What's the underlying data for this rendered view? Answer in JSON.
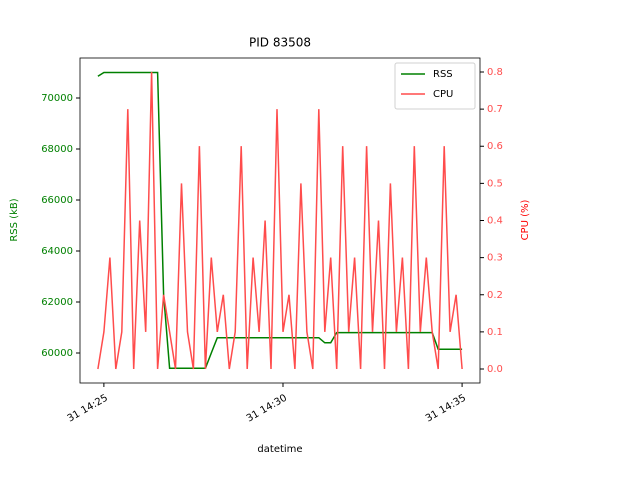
{
  "chart_data": {
    "type": "line",
    "title": "PID 83508",
    "x_label": "datetime",
    "y_label": "RSS (kB)",
    "y2_label": "CPU (%)",
    "x": [
      "14:24:50",
      "14:25:00",
      "14:25:10",
      "14:25:20",
      "14:25:30",
      "14:25:40",
      "14:25:50",
      "14:26:00",
      "14:26:10",
      "14:26:20",
      "14:26:30",
      "14:26:40",
      "14:26:50",
      "14:27:00",
      "14:27:10",
      "14:27:20",
      "14:27:30",
      "14:27:40",
      "14:27:50",
      "14:28:00",
      "14:28:10",
      "14:28:20",
      "14:28:30",
      "14:28:40",
      "14:28:50",
      "14:29:00",
      "14:29:10",
      "14:29:20",
      "14:29:30",
      "14:29:40",
      "14:29:50",
      "14:30:00",
      "14:30:10",
      "14:30:20",
      "14:30:30",
      "14:30:40",
      "14:30:50",
      "14:31:00",
      "14:31:10",
      "14:31:20",
      "14:31:30",
      "14:31:40",
      "14:31:50",
      "14:32:00",
      "14:32:10",
      "14:32:20",
      "14:32:30",
      "14:32:40",
      "14:32:50",
      "14:33:00",
      "14:33:10",
      "14:33:20",
      "14:33:30",
      "14:33:40",
      "14:33:50",
      "14:34:00",
      "14:34:10",
      "14:34:20",
      "14:34:30",
      "14:34:40",
      "14:34:50",
      "14:35:00"
    ],
    "series": [
      {
        "name": "RSS",
        "color": "#008000",
        "values": [
          70850,
          71000,
          71000,
          71000,
          71000,
          71000,
          71000,
          71000,
          71000,
          71000,
          71000,
          62300,
          59400,
          59400,
          59400,
          59400,
          59400,
          59400,
          59400,
          60000,
          60600,
          60600,
          60600,
          60600,
          60600,
          60600,
          60600,
          60600,
          60600,
          60600,
          60600,
          60600,
          60600,
          60600,
          60600,
          60600,
          60600,
          60600,
          60400,
          60400,
          60800,
          60800,
          60800,
          60800,
          60800,
          60800,
          60800,
          60800,
          60800,
          60800,
          60800,
          60800,
          60800,
          60800,
          60800,
          60800,
          60800,
          60150,
          60150,
          60150,
          60150,
          60150
        ]
      },
      {
        "name": "CPU",
        "color": "#ff4c4c",
        "axis": "y2",
        "values": [
          0,
          0.1,
          0.3,
          0,
          0.1,
          0.7,
          0,
          0.4,
          0.1,
          0.8,
          0,
          0.2,
          0.1,
          0,
          0.5,
          0.1,
          0,
          0.6,
          0,
          0.3,
          0.1,
          0.2,
          0,
          0.1,
          0.6,
          0,
          0.3,
          0.1,
          0.4,
          0,
          0.7,
          0.1,
          0.2,
          0,
          0.5,
          0.1,
          0,
          0.7,
          0.1,
          0.3,
          0,
          0.6,
          0.1,
          0.3,
          0,
          0.6,
          0.1,
          0.4,
          0,
          0.5,
          0.1,
          0.3,
          0,
          0.6,
          0.1,
          0.3,
          0.1,
          0,
          0.6,
          0.1,
          0.2,
          0
        ]
      }
    ],
    "xlim": [
      "14:24:20",
      "14:35:30"
    ],
    "xticks": [
      {
        "value": "14:25:00",
        "label": "31 14:25"
      },
      {
        "value": "14:30:00",
        "label": "31 14:30"
      },
      {
        "value": "14:35:00",
        "label": "31 14:35"
      }
    ],
    "ylim": [
      58824,
      71569
    ],
    "yticks": [
      60000,
      62000,
      64000,
      66000,
      68000,
      70000
    ],
    "y2lim": [
      -0.0377,
      0.8377
    ],
    "y2ticks": [
      {
        "value": 0,
        "label": "0.0"
      },
      0.1,
      0.2,
      0.3,
      0.4,
      0.5,
      0.6,
      0.7,
      0.8
    ],
    "legend": "upper right"
  }
}
